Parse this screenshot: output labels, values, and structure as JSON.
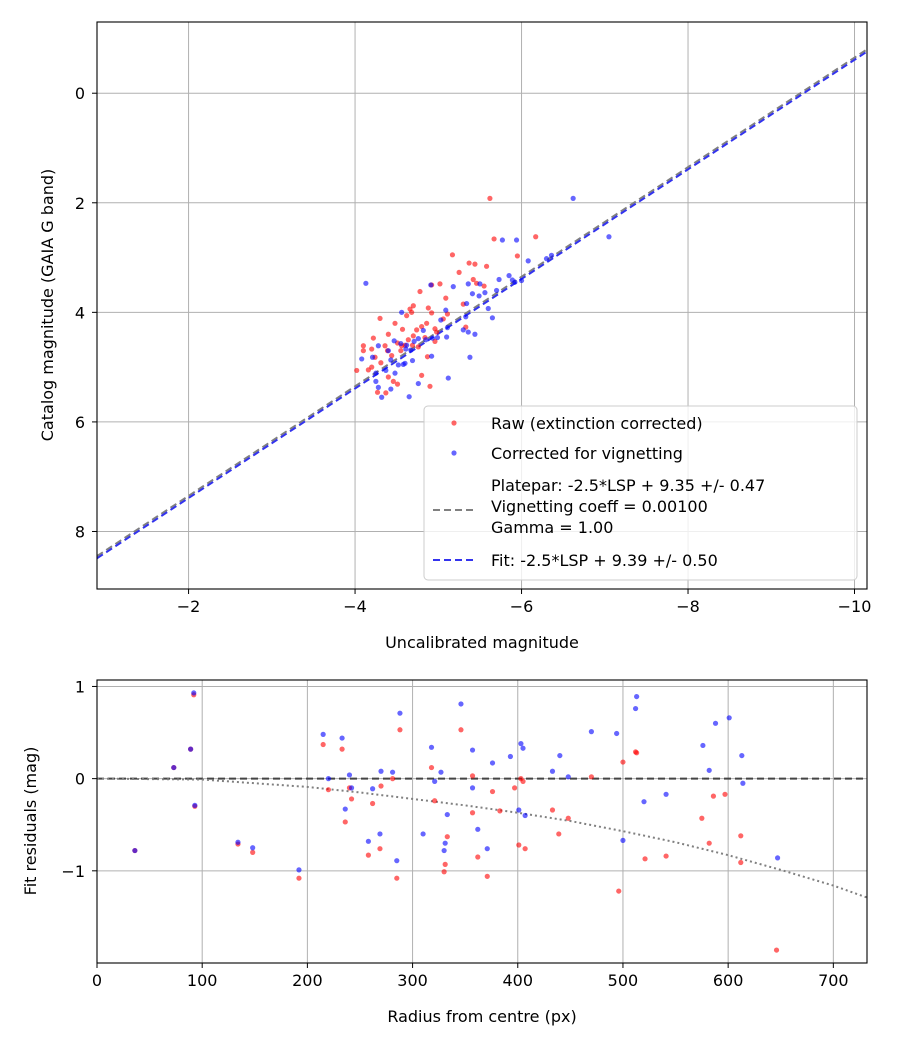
{
  "chart_data": [
    {
      "type": "scatter",
      "xlabel": "Uncalibrated magnitude",
      "ylabel": "Catalog magnitude (GAIA G band)",
      "xlim": [
        -0.9,
        -10.15
      ],
      "ylim": [
        9.05,
        -1.3
      ],
      "x_inverted": true,
      "y_inverted": true,
      "xticks": [
        -2,
        -4,
        -6,
        -8,
        -10
      ],
      "xtick_labels": [
        "−2",
        "−4",
        "−6",
        "−8",
        "−10"
      ],
      "yticks": [
        0,
        2,
        4,
        6,
        8
      ],
      "ytick_labels": [
        "0",
        "2",
        "4",
        "6",
        "8"
      ],
      "grid": true,
      "legend_position": "lower-right",
      "series": [
        {
          "name": "Raw (extinction corrected)",
          "kind": "scatter",
          "color": "#ff0000",
          "x": [
            -5.62,
            -6.17,
            -5.67,
            -5.95,
            -5.17,
            -5.37,
            -5.44,
            -5.58,
            -5.25,
            -5.42,
            -5.02,
            -4.92,
            -4.78,
            -4.7,
            -5.46,
            -5.09,
            -5.3,
            -5.55,
            -4.88,
            -4.66,
            -4.68,
            -4.92,
            -5.11,
            -5.06,
            -4.62,
            -4.3,
            -4.86,
            -4.48,
            -4.8,
            -4.96,
            -4.98,
            -4.74,
            -4.57,
            -4.4,
            -4.7,
            -4.84,
            -4.96,
            -4.22,
            -4.64,
            -4.51,
            -4.56,
            -4.6,
            -4.69,
            -4.76,
            -4.36,
            -4.1,
            -4.2,
            -4.39,
            -4.55,
            -4.1,
            -4.44,
            -4.87,
            -4.24,
            -4.31,
            -4.2,
            -4.16,
            -4.02,
            -4.8,
            -4.4,
            -4.46,
            -4.51,
            -4.9,
            -4.27,
            -4.37,
            -5.33
          ],
          "y": [
            1.92,
            2.62,
            2.66,
            2.97,
            2.95,
            3.1,
            3.12,
            3.16,
            3.27,
            3.4,
            3.48,
            3.5,
            3.62,
            3.88,
            3.47,
            3.74,
            3.85,
            3.52,
            3.92,
            3.94,
            4.0,
            4.01,
            4.03,
            4.12,
            4.06,
            4.11,
            4.2,
            4.2,
            4.26,
            4.3,
            4.36,
            4.32,
            4.31,
            4.4,
            4.43,
            4.46,
            4.53,
            4.47,
            4.5,
            4.56,
            4.61,
            4.6,
            4.6,
            4.63,
            4.61,
            4.61,
            4.67,
            4.7,
            4.7,
            4.7,
            4.79,
            4.81,
            4.82,
            4.92,
            5.0,
            5.05,
            5.06,
            5.15,
            5.18,
            5.26,
            5.31,
            5.35,
            5.46,
            5.47,
            4.27
          ]
        },
        {
          "name": "Corrected for vignetting",
          "kind": "scatter",
          "color": "#0000ff",
          "x": [
            -6.62,
            -7.05,
            -5.77,
            -5.94,
            -6.36,
            -6.3,
            -6.08,
            -6.0,
            -5.89,
            -5.73,
            -5.85,
            -5.92,
            -5.36,
            -5.7,
            -5.5,
            -5.18,
            -5.56,
            -5.6,
            -4.91,
            -5.49,
            -5.41,
            -5.34,
            -5.09,
            -5.33,
            -4.56,
            -5.65,
            -5.03,
            -5.11,
            -5.3,
            -5.36,
            -4.82,
            -5.44,
            -5.1,
            -4.99,
            -4.93,
            -4.85,
            -4.76,
            -4.71,
            -4.55,
            -4.62,
            -4.67,
            -4.28,
            -4.47,
            -4.61,
            -4.4,
            -4.92,
            -5.38,
            -4.21,
            -4.08,
            -4.43,
            -4.69,
            -4.6,
            -4.58,
            -4.52,
            -4.37,
            -4.25,
            -4.48,
            -5.12,
            -4.25,
            -4.76,
            -4.28,
            -4.43,
            -4.65,
            -4.32,
            -4.13
          ],
          "y": [
            1.92,
            2.62,
            2.68,
            2.68,
            2.96,
            3.02,
            3.06,
            3.42,
            3.41,
            3.4,
            3.33,
            3.45,
            3.48,
            3.6,
            3.48,
            3.53,
            3.64,
            3.93,
            3.5,
            3.7,
            3.66,
            3.84,
            3.96,
            4.08,
            4.0,
            4.1,
            4.14,
            4.28,
            4.32,
            4.36,
            4.33,
            4.4,
            4.45,
            4.46,
            4.47,
            4.5,
            4.48,
            4.53,
            4.57,
            4.6,
            4.69,
            4.61,
            4.52,
            4.67,
            4.7,
            4.8,
            4.82,
            4.82,
            4.85,
            4.87,
            4.88,
            4.93,
            4.95,
            4.96,
            5.06,
            5.11,
            5.11,
            5.2,
            5.26,
            5.3,
            5.37,
            5.4,
            5.54,
            5.55,
            3.47
          ]
        },
        {
          "name": "Platepar: -2.5*LSP + 9.35 +/- 0.47\nVignetting coeff = 0.00100\nGamma = 1.00",
          "kind": "line",
          "color": "#808080",
          "dashed": true,
          "x": [
            -0.9,
            -10.15
          ],
          "y": [
            8.45,
            -0.8
          ]
        },
        {
          "name": "Fit: -2.5*LSP + 9.39 +/- 0.50",
          "kind": "line",
          "color": "#3333ee",
          "dashed": true,
          "x": [
            -0.9,
            -10.15
          ],
          "y": [
            8.49,
            -0.76
          ]
        }
      ],
      "legend": [
        {
          "label": "Raw (extinction corrected)",
          "marker": "dot",
          "color": "#ff0000"
        },
        {
          "label": "Corrected for vignetting",
          "marker": "dot",
          "color": "#0000ff"
        },
        {
          "label": "Platepar: -2.5*LSP + 9.35 +/- 0.47\nVignetting coeff = 0.00100\nGamma = 1.00",
          "marker": "dash",
          "color": "#808080"
        },
        {
          "label": "Fit: -2.5*LSP + 9.39 +/- 0.50",
          "marker": "dash",
          "color": "#3333ee"
        }
      ]
    },
    {
      "type": "scatter",
      "xlabel": "Radius from centre (px)",
      "ylabel": "Fit residuals (mag)",
      "xlim": [
        0,
        732
      ],
      "ylim": [
        -2.0,
        1.07
      ],
      "xticks": [
        0,
        100,
        200,
        300,
        400,
        500,
        600,
        700
      ],
      "xtick_labels": [
        "0",
        "100",
        "200",
        "300",
        "400",
        "500",
        "600",
        "700"
      ],
      "yticks": [
        1,
        0,
        -1
      ],
      "ytick_labels": [
        "1",
        "0",
        "−1"
      ],
      "grid": true,
      "series": [
        {
          "name": "Raw (extinction corrected)",
          "kind": "scatter",
          "color": "#ff0000",
          "x": [
            36,
            73,
            89,
            92,
            93,
            134,
            148,
            192,
            215,
            220,
            233,
            236,
            240,
            242,
            258,
            262,
            269,
            270,
            281,
            285,
            288,
            318,
            321,
            330,
            331,
            333,
            346,
            357,
            357,
            362,
            371,
            376,
            383,
            397,
            401,
            403,
            405,
            407,
            433,
            439,
            448,
            470,
            496,
            500,
            512,
            513,
            521,
            541,
            575,
            582,
            586,
            597,
            612,
            612,
            646
          ],
          "y": [
            -0.78,
            0.12,
            0.32,
            0.91,
            -0.3,
            -0.71,
            -0.8,
            -1.08,
            0.37,
            -0.12,
            0.32,
            -0.47,
            -0.1,
            -0.22,
            -0.83,
            -0.27,
            -0.76,
            -0.08,
            0.0,
            -1.08,
            0.53,
            0.12,
            -0.24,
            -1.01,
            -0.93,
            -0.63,
            0.53,
            -0.37,
            0.03,
            -0.85,
            -1.06,
            -0.14,
            -0.35,
            -0.1,
            -0.72,
            0.0,
            -0.03,
            -0.76,
            -0.34,
            -0.6,
            -0.43,
            0.02,
            -1.22,
            0.18,
            0.29,
            0.28,
            -0.87,
            -0.84,
            -0.43,
            -0.7,
            -0.19,
            -0.17,
            -0.62,
            -0.91,
            -1.86
          ]
        },
        {
          "name": "Corrected for vignetting",
          "kind": "scatter",
          "color": "#0000ff",
          "x": [
            36,
            73,
            89,
            92,
            93,
            134,
            148,
            192,
            215,
            220,
            233,
            236,
            240,
            242,
            258,
            262,
            269,
            270,
            281,
            285,
            288,
            310,
            318,
            321,
            327,
            330,
            331,
            333,
            346,
            357,
            357,
            362,
            371,
            376,
            393,
            401,
            403,
            405,
            407,
            433,
            440,
            448,
            470,
            494,
            500,
            512,
            513,
            520,
            541,
            576,
            582,
            588,
            601,
            613,
            614,
            647
          ],
          "y": [
            -0.78,
            0.12,
            0.32,
            0.93,
            -0.29,
            -0.69,
            -0.75,
            -0.99,
            0.48,
            0.0,
            0.44,
            -0.33,
            0.04,
            -0.1,
            -0.68,
            -0.11,
            -0.6,
            0.08,
            0.07,
            -0.89,
            0.71,
            -0.6,
            0.34,
            -0.03,
            0.07,
            -0.78,
            -0.7,
            -0.39,
            0.81,
            -0.1,
            0.31,
            -0.55,
            -0.76,
            0.17,
            0.24,
            -0.34,
            0.38,
            0.33,
            -0.4,
            0.08,
            0.25,
            0.02,
            0.51,
            0.49,
            -0.67,
            0.76,
            0.89,
            -0.25,
            -0.17,
            0.36,
            0.09,
            0.6,
            0.66,
            0.25,
            -0.05,
            -0.86
          ]
        },
        {
          "name": "",
          "kind": "line",
          "color": "#444444",
          "dashed": true,
          "x": [
            0,
            732
          ],
          "y": [
            0,
            0
          ]
        },
        {
          "name": "",
          "kind": "curve",
          "color": "#808080",
          "dotted": true,
          "x": [
            0,
            100,
            150,
            200,
            250,
            300,
            350,
            400,
            450,
            500,
            550,
            600,
            650,
            700,
            732
          ],
          "y": [
            0.0,
            -0.01,
            -0.05,
            -0.09,
            -0.15,
            -0.22,
            -0.29,
            -0.37,
            -0.46,
            -0.57,
            -0.69,
            -0.83,
            -0.99,
            -1.16,
            -1.29
          ]
        }
      ]
    }
  ]
}
